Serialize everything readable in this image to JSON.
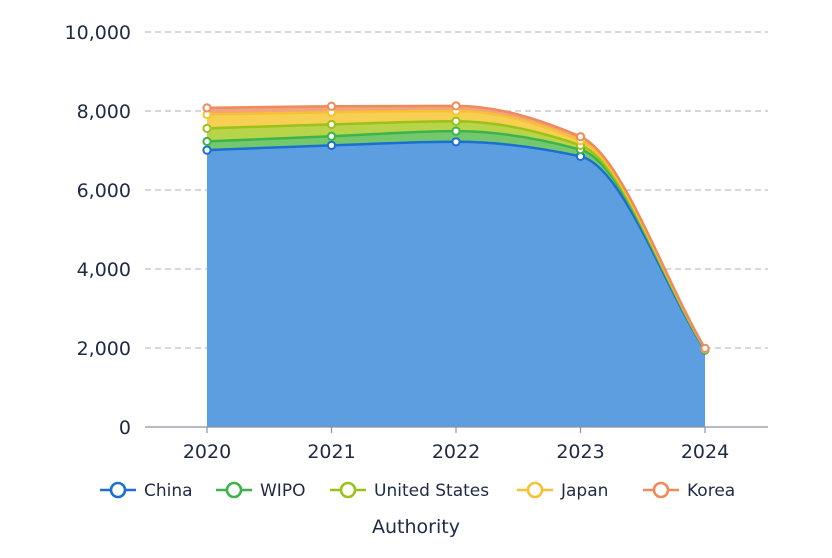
{
  "chart_data": {
    "type": "area",
    "stacked": true,
    "categories": [
      "2020",
      "2021",
      "2022",
      "2023",
      "2024"
    ],
    "series": [
      {
        "name": "China",
        "values": [
          7010,
          7130,
          7220,
          6850,
          1950
        ],
        "color": "#1a6fd1",
        "fill": "#5d9ee0"
      },
      {
        "name": "WIPO",
        "values": [
          220,
          230,
          270,
          170,
          10
        ],
        "color": "#3cb44b",
        "fill": "#73c86e"
      },
      {
        "name": "United States",
        "values": [
          330,
          300,
          250,
          110,
          10
        ],
        "color": "#9cc11a",
        "fill": "#b7d44a"
      },
      {
        "name": "Japan",
        "values": [
          350,
          310,
          260,
          120,
          10
        ],
        "color": "#f6c132",
        "fill": "#f7cf52"
      },
      {
        "name": "Korea",
        "values": [
          170,
          150,
          130,
          100,
          10
        ],
        "color": "#ef8a5b",
        "fill": "#f2a27c"
      }
    ],
    "ylim": [
      0,
      10000
    ],
    "yticks": [
      "0",
      "2,000",
      "4,000",
      "6,000",
      "8,000",
      "10,000"
    ],
    "ytick_values": [
      0,
      2000,
      4000,
      6000,
      8000,
      10000
    ],
    "xlabel": "Authority",
    "ylabel": "",
    "grid": "horizontal dashed",
    "legend_position": "bottom"
  }
}
